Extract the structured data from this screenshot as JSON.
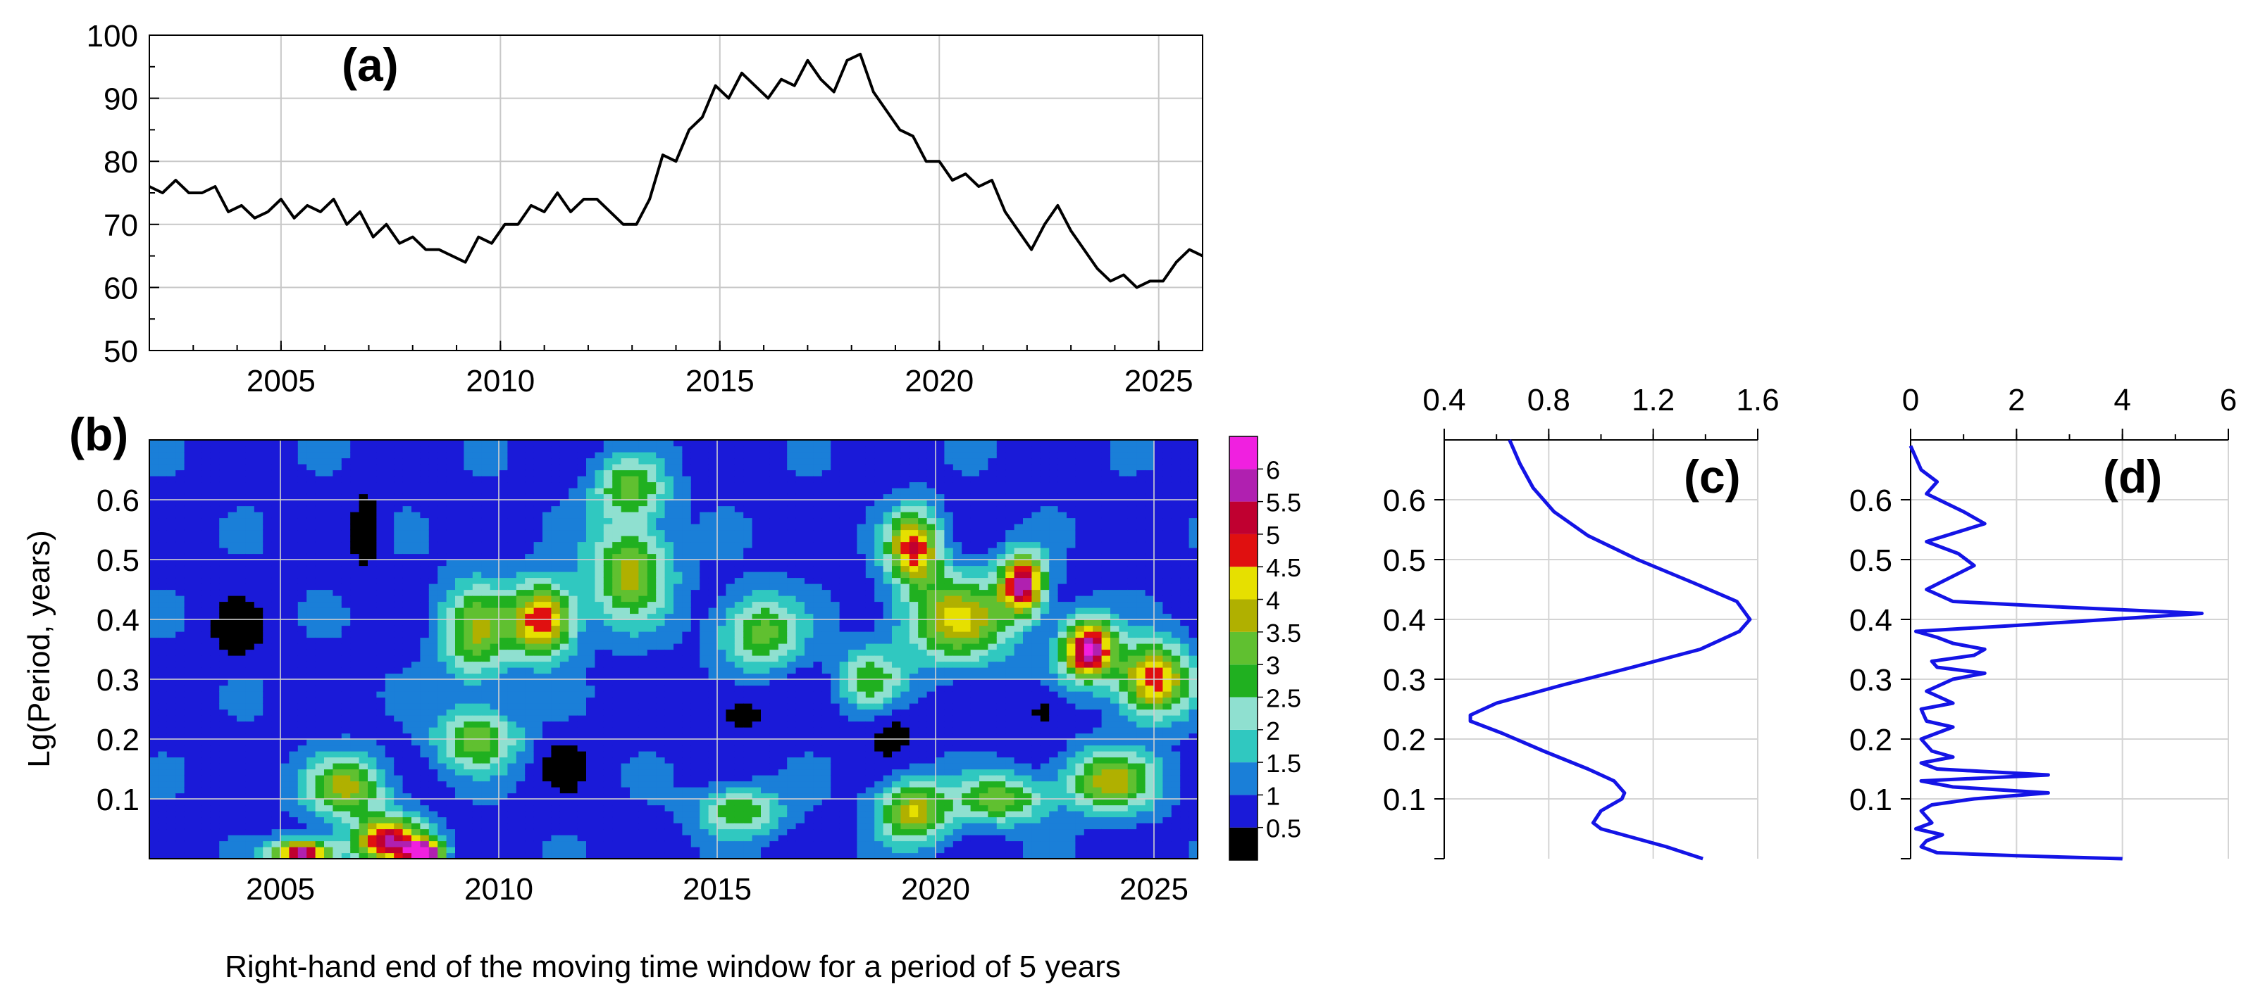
{
  "figure": {
    "xlabel_bottom": "Right-hand end of the moving time window for a period of 5 years"
  },
  "chart_data": [
    {
      "type": "line",
      "panel_label": "(a)",
      "xlim": [
        2002,
        2026
      ],
      "ylim": [
        50,
        100
      ],
      "x_ticks": [
        "2005",
        "2010",
        "2015",
        "2020",
        "2025"
      ],
      "y_ticks": [
        "50",
        "60",
        "70",
        "80",
        "90",
        "100"
      ],
      "grid": true,
      "color": "#000000",
      "series": [
        {
          "points": [
            [
              2002.0,
              76
            ],
            [
              2002.3,
              75
            ],
            [
              2002.6,
              77
            ],
            [
              2002.9,
              75
            ],
            [
              2003.2,
              75
            ],
            [
              2003.5,
              76
            ],
            [
              2003.8,
              72
            ],
            [
              2004.1,
              73
            ],
            [
              2004.4,
              71
            ],
            [
              2004.7,
              72
            ],
            [
              2005.0,
              74
            ],
            [
              2005.3,
              71
            ],
            [
              2005.6,
              73
            ],
            [
              2005.9,
              72
            ],
            [
              2006.2,
              74
            ],
            [
              2006.5,
              70
            ],
            [
              2006.8,
              72
            ],
            [
              2007.1,
              68
            ],
            [
              2007.4,
              70
            ],
            [
              2007.7,
              67
            ],
            [
              2008.0,
              68
            ],
            [
              2008.3,
              66
            ],
            [
              2008.6,
              66
            ],
            [
              2008.9,
              65
            ],
            [
              2009.2,
              64
            ],
            [
              2009.5,
              68
            ],
            [
              2009.8,
              67
            ],
            [
              2010.1,
              70
            ],
            [
              2010.4,
              70
            ],
            [
              2010.7,
              73
            ],
            [
              2011.0,
              72
            ],
            [
              2011.3,
              75
            ],
            [
              2011.6,
              72
            ],
            [
              2011.9,
              74
            ],
            [
              2012.2,
              74
            ],
            [
              2012.5,
              72
            ],
            [
              2012.8,
              70
            ],
            [
              2013.1,
              70
            ],
            [
              2013.4,
              74
            ],
            [
              2013.7,
              81
            ],
            [
              2014.0,
              80
            ],
            [
              2014.3,
              85
            ],
            [
              2014.6,
              87
            ],
            [
              2014.9,
              92
            ],
            [
              2015.2,
              90
            ],
            [
              2015.5,
              94
            ],
            [
              2015.8,
              92
            ],
            [
              2016.1,
              90
            ],
            [
              2016.4,
              93
            ],
            [
              2016.7,
              92
            ],
            [
              2017.0,
              96
            ],
            [
              2017.3,
              93
            ],
            [
              2017.6,
              91
            ],
            [
              2017.9,
              96
            ],
            [
              2018.2,
              97
            ],
            [
              2018.5,
              91
            ],
            [
              2018.8,
              88
            ],
            [
              2019.1,
              85
            ],
            [
              2019.4,
              84
            ],
            [
              2019.7,
              80
            ],
            [
              2020.0,
              80
            ],
            [
              2020.3,
              77
            ],
            [
              2020.6,
              78
            ],
            [
              2020.9,
              76
            ],
            [
              2021.2,
              77
            ],
            [
              2021.5,
              72
            ],
            [
              2021.8,
              69
            ],
            [
              2022.1,
              66
            ],
            [
              2022.4,
              70
            ],
            [
              2022.7,
              73
            ],
            [
              2023.0,
              69
            ],
            [
              2023.3,
              66
            ],
            [
              2023.6,
              63
            ],
            [
              2023.9,
              61
            ],
            [
              2024.2,
              62
            ],
            [
              2024.5,
              60
            ],
            [
              2024.8,
              61
            ],
            [
              2025.1,
              61
            ],
            [
              2025.4,
              64
            ],
            [
              2025.7,
              66
            ],
            [
              2026.0,
              65
            ]
          ]
        }
      ]
    },
    {
      "type": "heatmap",
      "panel_label": "(b)",
      "ylabel": "Lg(Period, years)",
      "xlim": [
        2002,
        2026
      ],
      "ylim": [
        0,
        0.7
      ],
      "x_ticks": [
        "2005",
        "2010",
        "2015",
        "2020",
        "2025"
      ],
      "y_ticks": [
        "0.1",
        "0.2",
        "0.3",
        "0.4",
        "0.5",
        "0.6"
      ],
      "colorbar_ticks": [
        "0.5",
        "1",
        "1.5",
        "2",
        "2.5",
        "3",
        "3.5",
        "4",
        "4.5",
        "5",
        "5.5",
        "6"
      ],
      "levels": [
        {
          "from": 0.0,
          "to": 0.5,
          "color": "#000000"
        },
        {
          "from": 0.5,
          "to": 1.0,
          "color": "#1a1ad8"
        },
        {
          "from": 1.0,
          "to": 1.5,
          "color": "#1a7fd8"
        },
        {
          "from": 1.5,
          "to": 2.0,
          "color": "#30c8c0"
        },
        {
          "from": 2.0,
          "to": 2.5,
          "color": "#8fe0d0"
        },
        {
          "from": 2.5,
          "to": 3.0,
          "color": "#20b020"
        },
        {
          "from": 3.0,
          "to": 3.5,
          "color": "#60c030"
        },
        {
          "from": 3.5,
          "to": 4.0,
          "color": "#b0b000"
        },
        {
          "from": 4.0,
          "to": 4.5,
          "color": "#e6e000"
        },
        {
          "from": 4.5,
          "to": 5.0,
          "color": "#e01010"
        },
        {
          "from": 5.0,
          "to": 5.5,
          "color": "#c00030"
        },
        {
          "from": 5.5,
          "to": 6.0,
          "color": "#b020b0"
        },
        {
          "from": 6.0,
          "to": 6.5,
          "color": "#f020e0"
        }
      ],
      "hotspots": [
        {
          "x": 2005.5,
          "y": 0.01,
          "sx": 0.7,
          "sy": 0.02,
          "a": 5.3
        },
        {
          "x": 2007.5,
          "y": 0.03,
          "sx": 0.8,
          "sy": 0.04,
          "a": 4.6
        },
        {
          "x": 2008.3,
          "y": 0.01,
          "sx": 0.4,
          "sy": 0.02,
          "a": 5.5
        },
        {
          "x": 2006.5,
          "y": 0.12,
          "sx": 0.9,
          "sy": 0.05,
          "a": 2.8
        },
        {
          "x": 2011.0,
          "y": 0.4,
          "sx": 0.7,
          "sy": 0.06,
          "a": 4.2
        },
        {
          "x": 2009.5,
          "y": 0.38,
          "sx": 0.8,
          "sy": 0.08,
          "a": 2.6
        },
        {
          "x": 2013.0,
          "y": 0.48,
          "sx": 0.9,
          "sy": 0.08,
          "a": 2.9
        },
        {
          "x": 2016.0,
          "y": 0.38,
          "sx": 0.9,
          "sy": 0.06,
          "a": 2.4
        },
        {
          "x": 2019.5,
          "y": 0.52,
          "sx": 0.6,
          "sy": 0.06,
          "a": 4.0
        },
        {
          "x": 2022.0,
          "y": 0.46,
          "sx": 0.5,
          "sy": 0.05,
          "a": 4.8
        },
        {
          "x": 2020.5,
          "y": 0.4,
          "sx": 1.2,
          "sy": 0.07,
          "a": 3.2
        },
        {
          "x": 2023.5,
          "y": 0.35,
          "sx": 0.6,
          "sy": 0.05,
          "a": 5.2
        },
        {
          "x": 2025.0,
          "y": 0.3,
          "sx": 0.8,
          "sy": 0.06,
          "a": 4.1
        },
        {
          "x": 2019.5,
          "y": 0.08,
          "sx": 0.8,
          "sy": 0.05,
          "a": 3.2
        },
        {
          "x": 2024.0,
          "y": 0.13,
          "sx": 1.0,
          "sy": 0.05,
          "a": 3.0
        },
        {
          "x": 2021.5,
          "y": 0.1,
          "sx": 1.0,
          "sy": 0.04,
          "a": 2.5
        },
        {
          "x": 2015.5,
          "y": 0.08,
          "sx": 0.9,
          "sy": 0.04,
          "a": 2.2
        },
        {
          "x": 2009.5,
          "y": 0.2,
          "sx": 0.9,
          "sy": 0.05,
          "a": 2.5
        },
        {
          "x": 2013.0,
          "y": 0.62,
          "sx": 0.8,
          "sy": 0.05,
          "a": 2.3
        },
        {
          "x": 2018.5,
          "y": 0.3,
          "sx": 0.7,
          "sy": 0.05,
          "a": 2.0
        }
      ],
      "lows": [
        {
          "x": 2004.0,
          "y": 0.38,
          "sx": 0.6,
          "sy": 0.05
        },
        {
          "x": 2007.0,
          "y": 0.55,
          "sx": 0.4,
          "sy": 0.08
        },
        {
          "x": 2015.5,
          "y": 0.25,
          "sx": 0.8,
          "sy": 0.05
        },
        {
          "x": 2019.0,
          "y": 0.22,
          "sx": 0.6,
          "sy": 0.05
        },
        {
          "x": 2022.5,
          "y": 0.25,
          "sx": 0.6,
          "sy": 0.04
        },
        {
          "x": 2011.5,
          "y": 0.16,
          "sx": 0.5,
          "sy": 0.04
        }
      ]
    },
    {
      "type": "line",
      "panel_label": "(c)",
      "orientation": "vertical",
      "xlim": [
        0.4,
        1.6
      ],
      "ylim": [
        0,
        0.7
      ],
      "x_ticks": [
        "0.4",
        "0.8",
        "1.2",
        "1.6"
      ],
      "y_ticks": [
        "0.1",
        "0.2",
        "0.3",
        "0.4",
        "0.5",
        "0.6"
      ],
      "color": "#1414e6",
      "series": [
        {
          "points": [
            [
              1.39,
              0.0
            ],
            [
              1.25,
              0.02
            ],
            [
              1.0,
              0.05
            ],
            [
              0.97,
              0.06
            ],
            [
              1.0,
              0.08
            ],
            [
              1.08,
              0.1
            ],
            [
              1.09,
              0.11
            ],
            [
              1.05,
              0.13
            ],
            [
              0.95,
              0.15
            ],
            [
              0.78,
              0.18
            ],
            [
              0.62,
              0.21
            ],
            [
              0.5,
              0.23
            ],
            [
              0.5,
              0.24
            ],
            [
              0.6,
              0.26
            ],
            [
              0.85,
              0.29
            ],
            [
              1.12,
              0.32
            ],
            [
              1.38,
              0.35
            ],
            [
              1.53,
              0.38
            ],
            [
              1.57,
              0.4
            ],
            [
              1.52,
              0.43
            ],
            [
              1.36,
              0.46
            ],
            [
              1.14,
              0.5
            ],
            [
              0.95,
              0.54
            ],
            [
              0.82,
              0.58
            ],
            [
              0.74,
              0.62
            ],
            [
              0.69,
              0.66
            ],
            [
              0.65,
              0.7
            ]
          ]
        }
      ]
    },
    {
      "type": "line",
      "panel_label": "(d)",
      "orientation": "vertical",
      "xlim": [
        0,
        6
      ],
      "ylim": [
        0,
        0.7
      ],
      "x_ticks": [
        "0",
        "2",
        "4",
        "6"
      ],
      "y_ticks": [
        "0.1",
        "0.2",
        "0.3",
        "0.4",
        "0.5",
        "0.6"
      ],
      "color": "#1414e6",
      "series": [
        {
          "points": [
            [
              4.0,
              0.0
            ],
            [
              2.0,
              0.005
            ],
            [
              0.5,
              0.01
            ],
            [
              0.2,
              0.02
            ],
            [
              0.3,
              0.03
            ],
            [
              0.6,
              0.04
            ],
            [
              0.1,
              0.05
            ],
            [
              0.4,
              0.06
            ],
            [
              0.2,
              0.08
            ],
            [
              0.4,
              0.09
            ],
            [
              1.2,
              0.1
            ],
            [
              2.6,
              0.11
            ],
            [
              0.8,
              0.12
            ],
            [
              0.2,
              0.13
            ],
            [
              2.6,
              0.14
            ],
            [
              0.5,
              0.15
            ],
            [
              0.2,
              0.16
            ],
            [
              0.8,
              0.17
            ],
            [
              0.4,
              0.18
            ],
            [
              0.2,
              0.2
            ],
            [
              0.8,
              0.22
            ],
            [
              0.3,
              0.23
            ],
            [
              0.2,
              0.25
            ],
            [
              0.8,
              0.26
            ],
            [
              0.3,
              0.28
            ],
            [
              0.8,
              0.3
            ],
            [
              1.4,
              0.31
            ],
            [
              0.5,
              0.32
            ],
            [
              0.4,
              0.33
            ],
            [
              1.2,
              0.34
            ],
            [
              1.4,
              0.35
            ],
            [
              0.8,
              0.36
            ],
            [
              0.5,
              0.37
            ],
            [
              0.1,
              0.38
            ],
            [
              2.0,
              0.39
            ],
            [
              5.5,
              0.41
            ],
            [
              3.0,
              0.42
            ],
            [
              0.8,
              0.43
            ],
            [
              0.3,
              0.45
            ],
            [
              1.2,
              0.49
            ],
            [
              0.9,
              0.51
            ],
            [
              0.3,
              0.53
            ],
            [
              1.4,
              0.56
            ],
            [
              1.0,
              0.58
            ],
            [
              0.3,
              0.61
            ],
            [
              0.5,
              0.63
            ],
            [
              0.2,
              0.65
            ],
            [
              0.1,
              0.67
            ],
            [
              0.0,
              0.69
            ]
          ]
        }
      ]
    }
  ]
}
